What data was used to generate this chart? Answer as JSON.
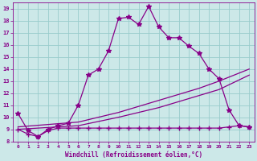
{
  "xlabel": "Windchill (Refroidissement éolien,°C)",
  "bg_color": "#cce8e8",
  "line_color": "#880088",
  "grid_color": "#99cccc",
  "xlim": [
    -0.5,
    23.5
  ],
  "ylim": [
    8.0,
    19.5
  ],
  "yticks": [
    8,
    9,
    10,
    11,
    12,
    13,
    14,
    15,
    16,
    17,
    18,
    19
  ],
  "xticks": [
    0,
    1,
    2,
    3,
    4,
    5,
    6,
    7,
    8,
    9,
    10,
    11,
    12,
    13,
    14,
    15,
    16,
    17,
    18,
    19,
    20,
    21,
    22,
    23
  ],
  "curve_main_x": [
    0,
    1,
    2,
    3,
    4,
    5,
    6,
    7,
    8,
    9,
    10,
    11,
    12,
    13,
    14,
    15,
    16,
    17,
    18,
    19,
    20,
    21,
    22,
    23
  ],
  "curve_main_y": [
    10.3,
    8.9,
    8.4,
    9.0,
    9.3,
    9.5,
    11.0,
    13.5,
    14.0,
    15.5,
    18.2,
    18.3,
    17.7,
    19.2,
    17.5,
    16.6,
    16.6,
    15.9,
    15.3,
    14.0,
    13.2,
    10.6,
    9.3,
    9.2
  ],
  "curve_flat_x": [
    0,
    1,
    2,
    3,
    4,
    5,
    6,
    7,
    8,
    9,
    10,
    11,
    12,
    13,
    14,
    15,
    16,
    17,
    18,
    19,
    20,
    21,
    22,
    23
  ],
  "curve_flat_y": [
    9.0,
    8.6,
    8.4,
    8.9,
    9.1,
    9.1,
    9.1,
    9.1,
    9.1,
    9.1,
    9.1,
    9.1,
    9.1,
    9.1,
    9.1,
    9.1,
    9.1,
    9.1,
    9.1,
    9.1,
    9.1,
    9.2,
    9.3,
    9.2
  ],
  "diag1_x": [
    0,
    6,
    10,
    14,
    18,
    20,
    23
  ],
  "diag1_y": [
    9.0,
    9.3,
    10.0,
    10.8,
    11.8,
    12.3,
    13.5
  ],
  "diag2_x": [
    0,
    6,
    10,
    14,
    18,
    20,
    23
  ],
  "diag2_y": [
    9.2,
    9.6,
    10.4,
    11.4,
    12.4,
    13.0,
    14.0
  ]
}
